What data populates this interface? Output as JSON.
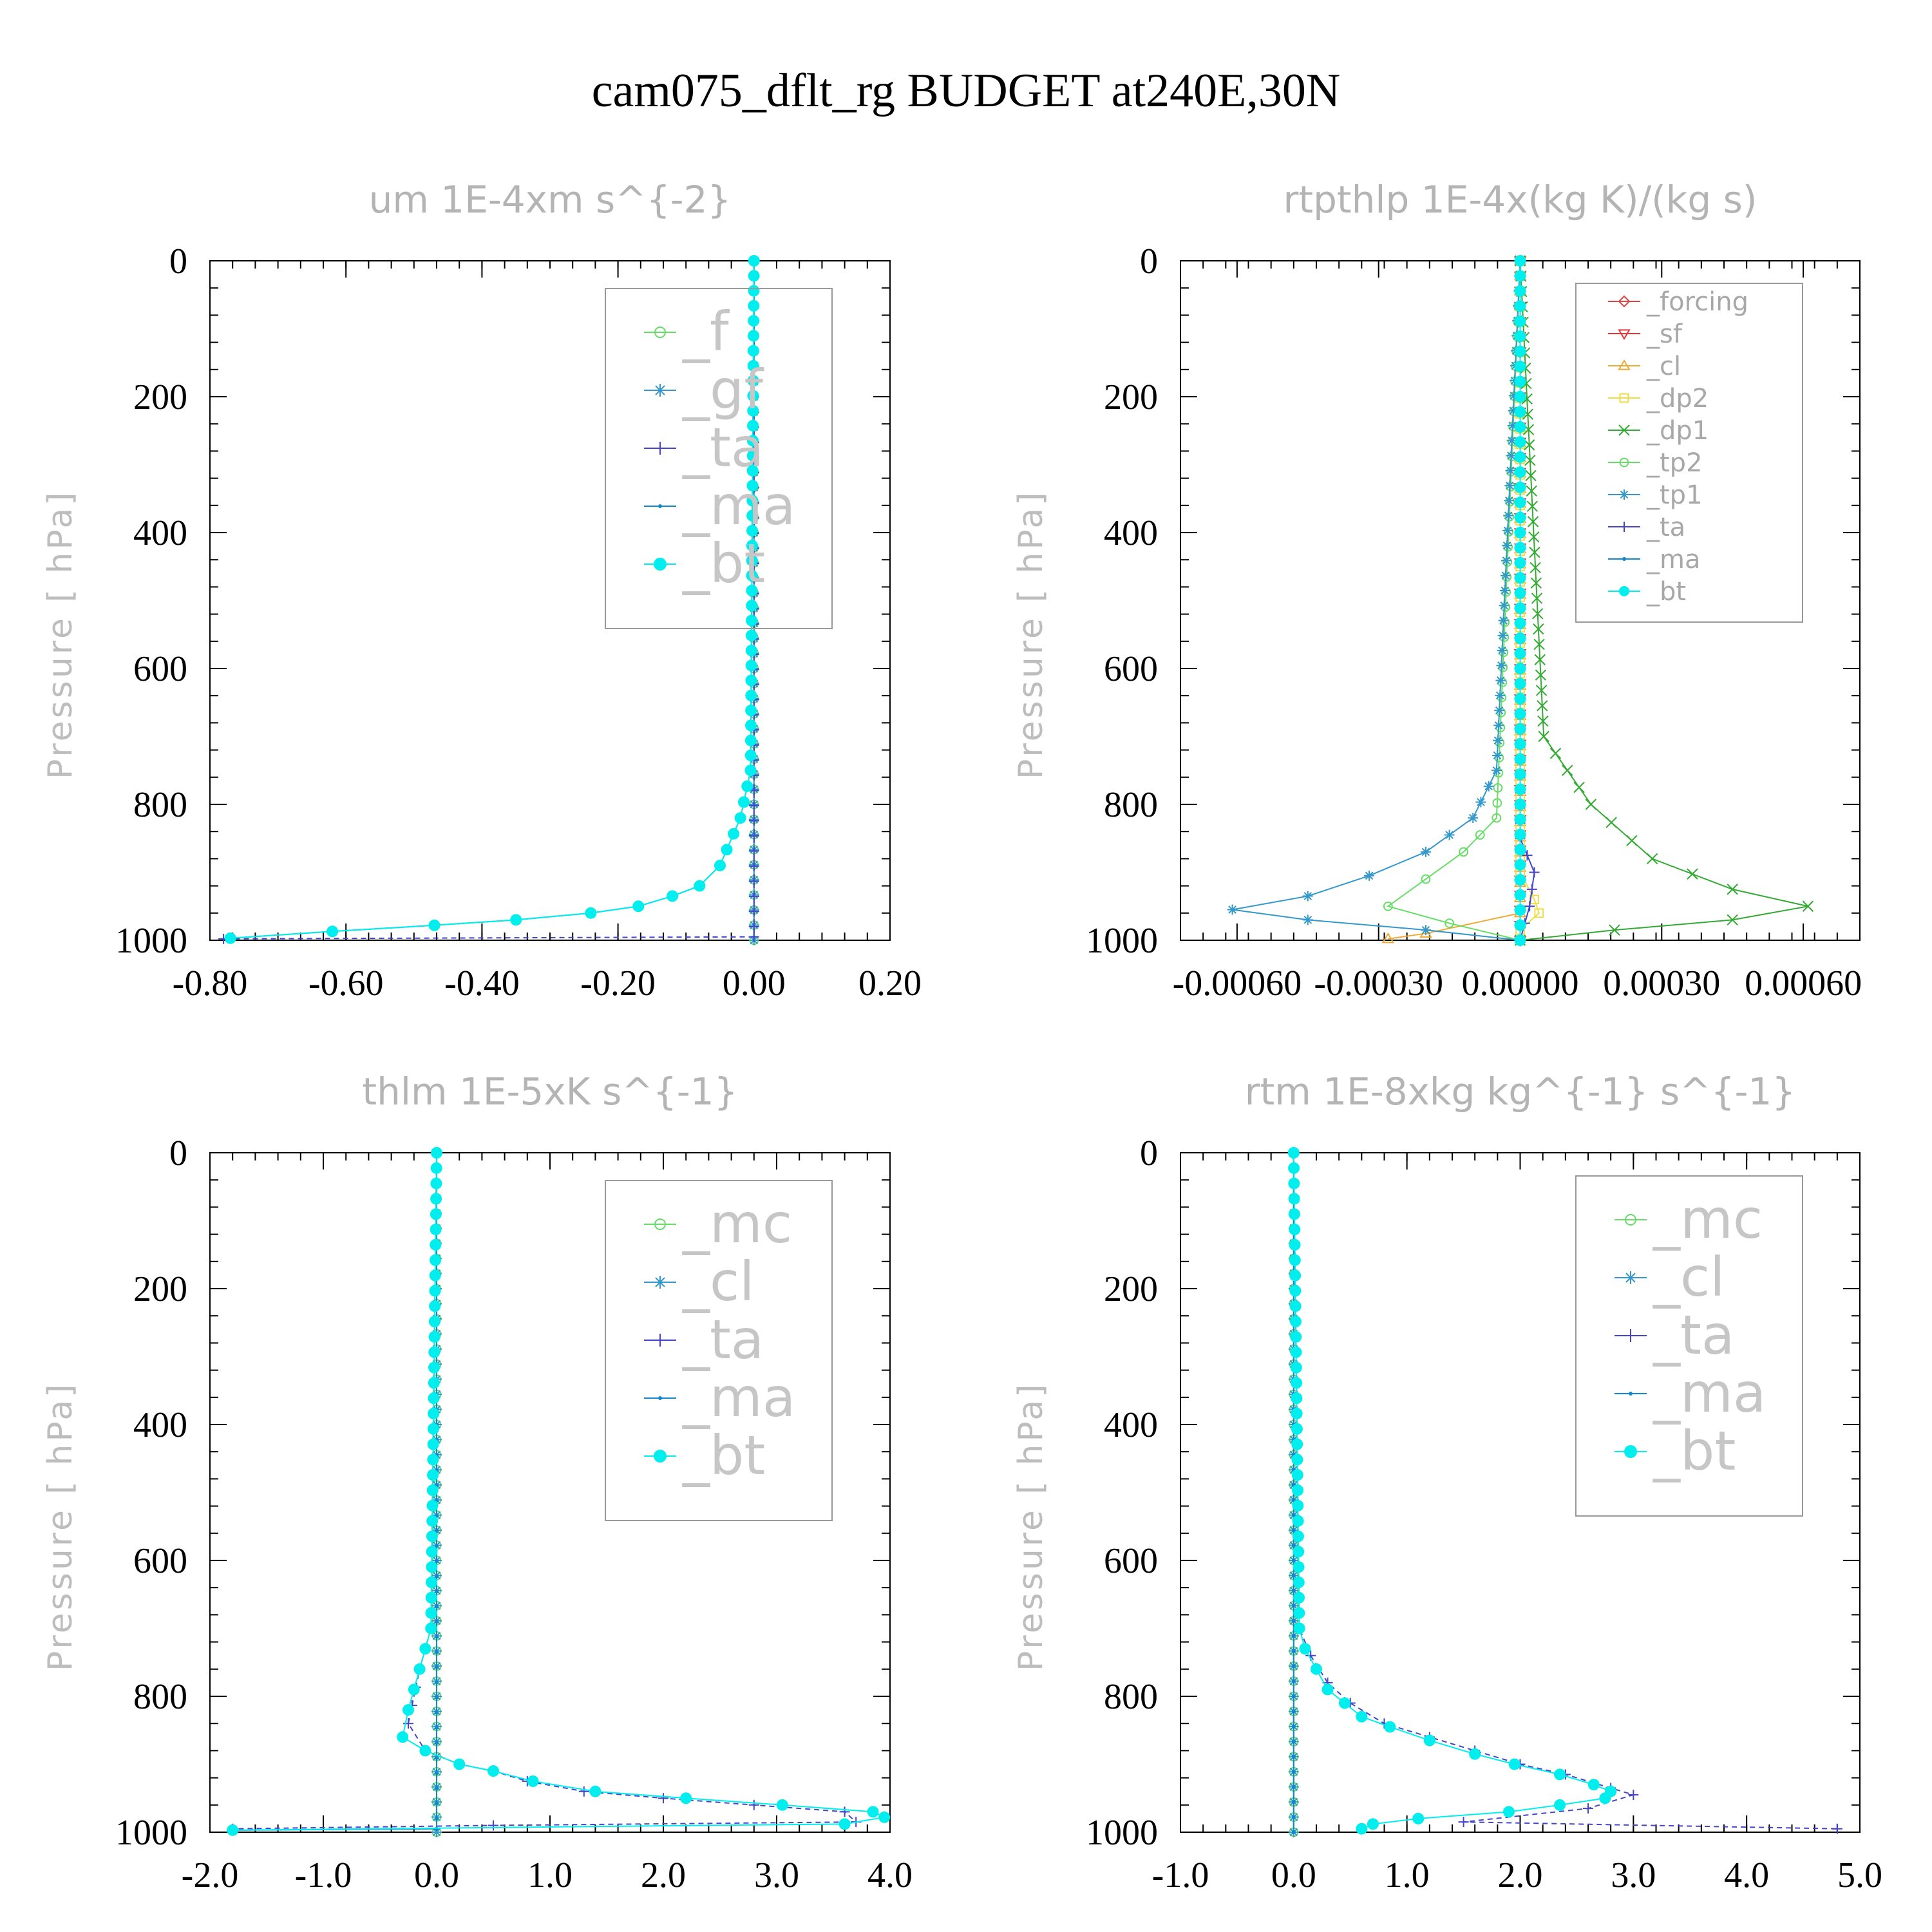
{
  "figure_title": "cam075_dflt_rg  BUDGET at240E,30N",
  "chart_data": [
    {
      "type": "line",
      "title": "um   1E-4xm s^{-2}",
      "ylabel": "Pressure [ hPa]",
      "xlim": [
        -0.8,
        0.2
      ],
      "ylim": [
        1000,
        0
      ],
      "xticks": [
        "-0.80",
        "-0.60",
        "-0.40",
        "-0.20",
        "0.00",
        "0.20"
      ],
      "xtick_values": [
        -0.8,
        -0.6,
        -0.4,
        -0.2,
        0.0,
        0.2
      ],
      "yticks": [
        "0",
        "200",
        "400",
        "600",
        "800",
        "1000"
      ],
      "ytick_values": [
        0,
        200,
        400,
        600,
        800,
        1000
      ],
      "legend_size": "large",
      "series": [
        {
          "name": "_f",
          "color": "#66dd66",
          "marker": "circle-open",
          "x": [
            0.0,
            0.0
          ],
          "y": [
            0,
            1000
          ]
        },
        {
          "name": "_gf",
          "color": "#3399cc",
          "marker": "asterisk",
          "x": [
            0.0,
            0.0
          ],
          "y": [
            0,
            1000
          ]
        },
        {
          "name": "_ta",
          "color": "#4444cc",
          "marker": "plus",
          "dashed": true,
          "x": [
            0.0,
            0.0,
            0.0,
            -0.78
          ],
          "y": [
            0,
            980,
            995,
            998
          ]
        },
        {
          "name": "_ma",
          "color": "#1188cc",
          "marker": "dot",
          "x": [
            0.0,
            -0.005,
            -0.02,
            -0.05,
            -0.08,
            -0.12,
            -0.17,
            -0.24,
            -0.35,
            -0.47,
            -0.62,
            -0.77
          ],
          "y": [
            0,
            750,
            820,
            890,
            920,
            935,
            950,
            960,
            970,
            978,
            987,
            997
          ]
        },
        {
          "name": "_bt",
          "color": "#00eeee",
          "marker": "dot-filled",
          "x": [
            0.0,
            -0.005,
            -0.02,
            -0.05,
            -0.08,
            -0.12,
            -0.17,
            -0.24,
            -0.35,
            -0.47,
            -0.62,
            -0.77
          ],
          "y": [
            0,
            750,
            820,
            890,
            920,
            935,
            950,
            960,
            970,
            978,
            987,
            997
          ]
        }
      ]
    },
    {
      "type": "line",
      "title": "rtpthlp   1E-4x(kg K)/(kg s)",
      "ylabel": "Pressure [ hPa]",
      "xlim": [
        -0.00072,
        0.00072
      ],
      "ylim": [
        1000,
        0
      ],
      "xticks": [
        "-0.00060",
        "-0.00030",
        "0.00000",
        "0.00030",
        "0.00060"
      ],
      "xtick_values": [
        -0.0006,
        -0.0003,
        0.0,
        0.0003,
        0.0006
      ],
      "yticks": [
        "0",
        "200",
        "400",
        "600",
        "800",
        "1000"
      ],
      "ytick_values": [
        0,
        200,
        400,
        600,
        800,
        1000
      ],
      "legend_size": "small",
      "series": [
        {
          "name": "_forcing",
          "color": "#dd4444",
          "marker": "diamond",
          "x": [
            0.0,
            0.0
          ],
          "y": [
            0,
            1000
          ]
        },
        {
          "name": "_sf",
          "color": "#ee3333",
          "marker": "triangle-down",
          "x": [
            0.0,
            0.0
          ],
          "y": [
            0,
            1000
          ]
        },
        {
          "name": "_cl",
          "color": "#eeaa33",
          "marker": "triangle-up",
          "x": [
            0.0,
            0.0,
            -0.0002,
            -0.00028
          ],
          "y": [
            0,
            960,
            990,
            998
          ]
        },
        {
          "name": "_dp2",
          "color": "#eedd44",
          "marker": "square",
          "x": [
            0.0,
            0.0,
            3e-05,
            4e-05,
            0.0,
            0.0
          ],
          "y": [
            0,
            900,
            940,
            960,
            985,
            1000
          ]
        },
        {
          "name": "_dp1",
          "color": "#33aa33",
          "marker": "x",
          "x": [
            0.0,
            5e-05,
            0.00015,
            0.00028,
            0.00045,
            0.00061,
            0.00045,
            0.0002,
            0.0
          ],
          "y": [
            0,
            700,
            800,
            880,
            925,
            950,
            970,
            985,
            1000
          ]
        },
        {
          "name": "_tp2",
          "color": "#66dd66",
          "marker": "circle-open",
          "x": [
            0.0,
            -5e-05,
            -0.00012,
            -0.0002,
            -0.00028,
            -0.00015,
            0.0
          ],
          "y": [
            0,
            820,
            870,
            910,
            950,
            975,
            1000
          ]
        },
        {
          "name": "_tp1",
          "color": "#3399cc",
          "marker": "asterisk",
          "x": [
            0.0,
            -5e-05,
            -0.0001,
            -0.0002,
            -0.00032,
            -0.00045,
            -0.00061,
            -0.00045,
            -0.0002,
            0.0
          ],
          "y": [
            0,
            750,
            820,
            870,
            905,
            935,
            955,
            970,
            985,
            1000
          ]
        },
        {
          "name": "_ta",
          "color": "#4444cc",
          "marker": "plus",
          "x": [
            0.0,
            0.0,
            3e-05,
            2e-05,
            0.0
          ],
          "y": [
            0,
            850,
            900,
            950,
            1000
          ]
        },
        {
          "name": "_ma",
          "color": "#1188cc",
          "marker": "dot",
          "x": [
            0.0,
            0.0
          ],
          "y": [
            0,
            1000
          ]
        },
        {
          "name": "_bt",
          "color": "#00eeee",
          "marker": "dot-filled",
          "x": [
            0.0,
            0.0
          ],
          "y": [
            0,
            1000
          ]
        }
      ]
    },
    {
      "type": "line",
      "title": "thlm   1E-5xK s^{-1}",
      "ylabel": "Pressure [ hPa]",
      "xlim": [
        -2.0,
        4.0
      ],
      "ylim": [
        1000,
        0
      ],
      "xticks": [
        "-2.0",
        "-1.0",
        "0.0",
        "1.0",
        "2.0",
        "3.0",
        "4.0"
      ],
      "xtick_values": [
        -2.0,
        -1.0,
        0.0,
        1.0,
        2.0,
        3.0,
        4.0
      ],
      "yticks": [
        "0",
        "200",
        "400",
        "600",
        "800",
        "1000"
      ],
      "ytick_values": [
        0,
        200,
        400,
        600,
        800,
        1000
      ],
      "legend_size": "large",
      "series": [
        {
          "name": "_mc",
          "color": "#66dd66",
          "marker": "circle-open",
          "x": [
            0.0,
            0.0
          ],
          "y": [
            0,
            1000
          ]
        },
        {
          "name": "_cl",
          "color": "#3399cc",
          "marker": "asterisk",
          "x": [
            0.0,
            0.0
          ],
          "y": [
            0,
            1000
          ]
        },
        {
          "name": "_ta",
          "color": "#4444cc",
          "marker": "plus",
          "dashed": true,
          "x": [
            0.0,
            -0.05,
            -0.15,
            -0.25,
            -0.1,
            0.2,
            0.5,
            0.8,
            1.3,
            2.0,
            2.8,
            3.6,
            3.7,
            0.5,
            -1.8
          ],
          "y": [
            0,
            700,
            760,
            840,
            880,
            900,
            910,
            925,
            940,
            950,
            960,
            970,
            985,
            990,
            995
          ]
        },
        {
          "name": "_ma",
          "color": "#1188cc",
          "marker": "dot",
          "x": [
            0.0,
            0.0,
            0.0,
            -1.8
          ],
          "y": [
            0,
            980,
            995,
            997
          ]
        },
        {
          "name": "_bt",
          "color": "#00eeee",
          "marker": "dot-filled",
          "x": [
            0.0,
            -0.05,
            -0.1,
            -0.15,
            -0.2,
            -0.25,
            -0.3,
            -0.1,
            0.2,
            0.5,
            0.85,
            1.4,
            2.2,
            3.05,
            3.85,
            3.95,
            3.6,
            -1.8
          ],
          "y": [
            0,
            700,
            730,
            760,
            790,
            820,
            860,
            880,
            900,
            910,
            925,
            940,
            950,
            960,
            970,
            978,
            988,
            997
          ]
        }
      ]
    },
    {
      "type": "line",
      "title": "rtm   1E-8xkg kg^{-1} s^{-1}",
      "ylabel": "Pressure [ hPa]",
      "xlim": [
        -1.0,
        5.0
      ],
      "ylim": [
        1000,
        0
      ],
      "xticks": [
        "-1.0",
        "0.0",
        "1.0",
        "2.0",
        "3.0",
        "4.0",
        "5.0"
      ],
      "xtick_values": [
        -1.0,
        0.0,
        1.0,
        2.0,
        3.0,
        4.0,
        5.0
      ],
      "yticks": [
        "0",
        "200",
        "400",
        "600",
        "800",
        "1000"
      ],
      "ytick_values": [
        0,
        200,
        400,
        600,
        800,
        1000
      ],
      "legend_size": "large",
      "series": [
        {
          "name": "_mc",
          "color": "#66dd66",
          "marker": "circle-open",
          "x": [
            0.0,
            0.0
          ],
          "y": [
            0,
            1000
          ]
        },
        {
          "name": "_cl",
          "color": "#3399cc",
          "marker": "asterisk",
          "x": [
            0.0,
            0.0
          ],
          "y": [
            0,
            1000
          ]
        },
        {
          "name": "_ta",
          "color": "#4444cc",
          "marker": "plus",
          "dashed": true,
          "x": [
            0.0,
            0.05,
            0.15,
            0.3,
            0.5,
            0.8,
            1.2,
            1.6,
            2.0,
            2.4,
            2.8,
            3.0,
            2.6,
            1.5,
            4.8
          ],
          "y": [
            0,
            700,
            740,
            780,
            810,
            840,
            860,
            880,
            900,
            915,
            935,
            945,
            965,
            985,
            995
          ]
        },
        {
          "name": "_ma",
          "color": "#1188cc",
          "marker": "dot",
          "x": [
            0.0,
            0.0
          ],
          "y": [
            0,
            1000
          ]
        },
        {
          "name": "_bt",
          "color": "#00eeee",
          "marker": "dot-filled",
          "x": [
            0.0,
            0.05,
            0.1,
            0.2,
            0.3,
            0.45,
            0.6,
            0.85,
            1.2,
            1.6,
            1.95,
            2.35,
            2.65,
            2.8,
            2.75,
            2.35,
            1.9,
            1.1,
            0.7,
            0.6
          ],
          "y": [
            0,
            700,
            730,
            760,
            790,
            810,
            830,
            845,
            865,
            885,
            900,
            915,
            930,
            940,
            950,
            960,
            970,
            980,
            988,
            995
          ]
        }
      ]
    }
  ]
}
